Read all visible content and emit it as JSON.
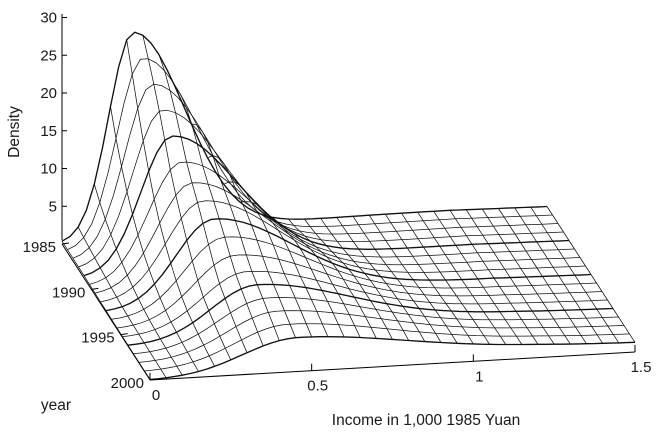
{
  "chart_data": {
    "type": "surface",
    "title": "",
    "xlabel": "Income in 1,000 1985 Yuan",
    "ylabel": "year",
    "zlabel": "Density",
    "xlim": [
      0,
      1.5
    ],
    "ylim": [
      1985,
      2000
    ],
    "zlim": [
      0,
      30
    ],
    "x_ticks": [
      "0",
      "0.5",
      "1",
      "1.5"
    ],
    "y_ticks": [
      "1985",
      "1990",
      "1995",
      "2000"
    ],
    "z_ticks": [
      "30",
      "25",
      "20",
      "15",
      "10",
      "5"
    ],
    "grid": false,
    "legend": "none",
    "description_of_surface": {
      "peak_density_by_year": [
        {
          "year": 1985,
          "peak_density": 27.5,
          "peak_income": 0.22
        },
        {
          "year": 1990,
          "peak_density": 15.0,
          "peak_income": 0.29
        },
        {
          "year": 1995,
          "peak_density": 8.0,
          "peak_income": 0.38
        },
        {
          "year": 2000,
          "peak_density": 4.5,
          "peak_income": 0.46
        }
      ],
      "right_tail_density_at_1_5": 1.5
    }
  }
}
